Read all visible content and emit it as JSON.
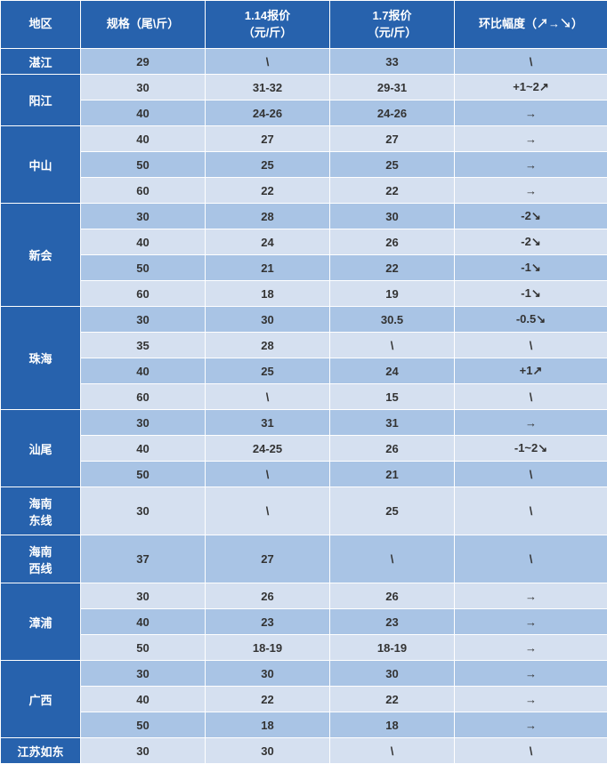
{
  "headers": {
    "region": "地区",
    "spec": "规格（尾\\斤）",
    "price1": "1.14报价\n（元/斤）",
    "price2": "1.7报价\n（元/斤）",
    "amp": "环比幅度（↗→↘）"
  },
  "groups": [
    {
      "region": "湛江",
      "rows": [
        {
          "spec": "29",
          "p1": "\\",
          "p2": "33",
          "amp": "\\",
          "ampClass": "flat",
          "shade": "dark"
        }
      ]
    },
    {
      "region": "阳江",
      "rows": [
        {
          "spec": "30",
          "p1": "31-32",
          "p2": "29-31",
          "amp": "+1~2↗",
          "ampClass": "up",
          "shade": "light"
        },
        {
          "spec": "40",
          "p1": "24-26",
          "p2": "24-26",
          "amp": "→",
          "ampClass": "flat",
          "shade": "dark"
        }
      ]
    },
    {
      "region": "中山",
      "rows": [
        {
          "spec": "40",
          "p1": "27",
          "p2": "27",
          "amp": "→",
          "ampClass": "flat",
          "shade": "light"
        },
        {
          "spec": "50",
          "p1": "25",
          "p2": "25",
          "amp": "→",
          "ampClass": "flat",
          "shade": "dark"
        },
        {
          "spec": "60",
          "p1": "22",
          "p2": "22",
          "amp": "→",
          "ampClass": "flat",
          "shade": "light"
        }
      ]
    },
    {
      "region": "新会",
      "rows": [
        {
          "spec": "30",
          "p1": "28",
          "p2": "30",
          "amp": "-2↘",
          "ampClass": "down",
          "shade": "dark"
        },
        {
          "spec": "40",
          "p1": "24",
          "p2": "26",
          "amp": "-2↘",
          "ampClass": "down",
          "shade": "light"
        },
        {
          "spec": "50",
          "p1": "21",
          "p2": "22",
          "amp": "-1↘",
          "ampClass": "down",
          "shade": "dark"
        },
        {
          "spec": "60",
          "p1": "18",
          "p2": "19",
          "amp": "-1↘",
          "ampClass": "down",
          "shade": "light"
        }
      ]
    },
    {
      "region": "珠海",
      "rows": [
        {
          "spec": "30",
          "p1": "30",
          "p2": "30.5",
          "amp": "-0.5↘",
          "ampClass": "down",
          "shade": "dark"
        },
        {
          "spec": "35",
          "p1": "28",
          "p2": "\\",
          "amp": "\\",
          "ampClass": "flat",
          "shade": "light"
        },
        {
          "spec": "40",
          "p1": "25",
          "p2": "24",
          "amp": "+1↗",
          "ampClass": "up",
          "shade": "dark"
        },
        {
          "spec": "60",
          "p1": "\\",
          "p2": "15",
          "amp": "\\",
          "ampClass": "flat",
          "shade": "light"
        }
      ]
    },
    {
      "region": "汕尾",
      "rows": [
        {
          "spec": "30",
          "p1": "31",
          "p2": "31",
          "amp": "→",
          "ampClass": "flat",
          "shade": "dark"
        },
        {
          "spec": "40",
          "p1": "24-25",
          "p2": "26",
          "amp": "-1~2↘",
          "ampClass": "down",
          "shade": "light"
        },
        {
          "spec": "50",
          "p1": "\\",
          "p2": "21",
          "amp": "\\",
          "ampClass": "flat",
          "shade": "dark"
        }
      ]
    },
    {
      "region": "海南\n东线",
      "rows": [
        {
          "spec": "30",
          "p1": "\\",
          "p2": "25",
          "amp": "\\",
          "ampClass": "flat",
          "shade": "light",
          "regionHeight": 54
        }
      ]
    },
    {
      "region": "海南\n西线",
      "rows": [
        {
          "spec": "37",
          "p1": "27",
          "p2": "\\",
          "amp": "\\",
          "ampClass": "flat",
          "shade": "dark",
          "regionHeight": 54
        }
      ]
    },
    {
      "region": "漳浦",
      "rows": [
        {
          "spec": "30",
          "p1": "26",
          "p2": "26",
          "amp": "→",
          "ampClass": "flat",
          "shade": "light"
        },
        {
          "spec": "40",
          "p1": "23",
          "p2": "23",
          "amp": "→",
          "ampClass": "flat",
          "shade": "dark"
        },
        {
          "spec": "50",
          "p1": "18-19",
          "p2": "18-19",
          "amp": "→",
          "ampClass": "flat",
          "shade": "light"
        }
      ]
    },
    {
      "region": "广西",
      "rows": [
        {
          "spec": "30",
          "p1": "30",
          "p2": "30",
          "amp": "→",
          "ampClass": "flat",
          "shade": "dark"
        },
        {
          "spec": "40",
          "p1": "22",
          "p2": "22",
          "amp": "→",
          "ampClass": "flat",
          "shade": "light"
        },
        {
          "spec": "50",
          "p1": "18",
          "p2": "18",
          "amp": "→",
          "ampClass": "flat",
          "shade": "dark"
        }
      ]
    },
    {
      "region": "江苏如东",
      "rows": [
        {
          "spec": "30",
          "p1": "30",
          "p2": "\\",
          "amp": "\\",
          "ampClass": "flat",
          "shade": "light"
        }
      ]
    }
  ]
}
